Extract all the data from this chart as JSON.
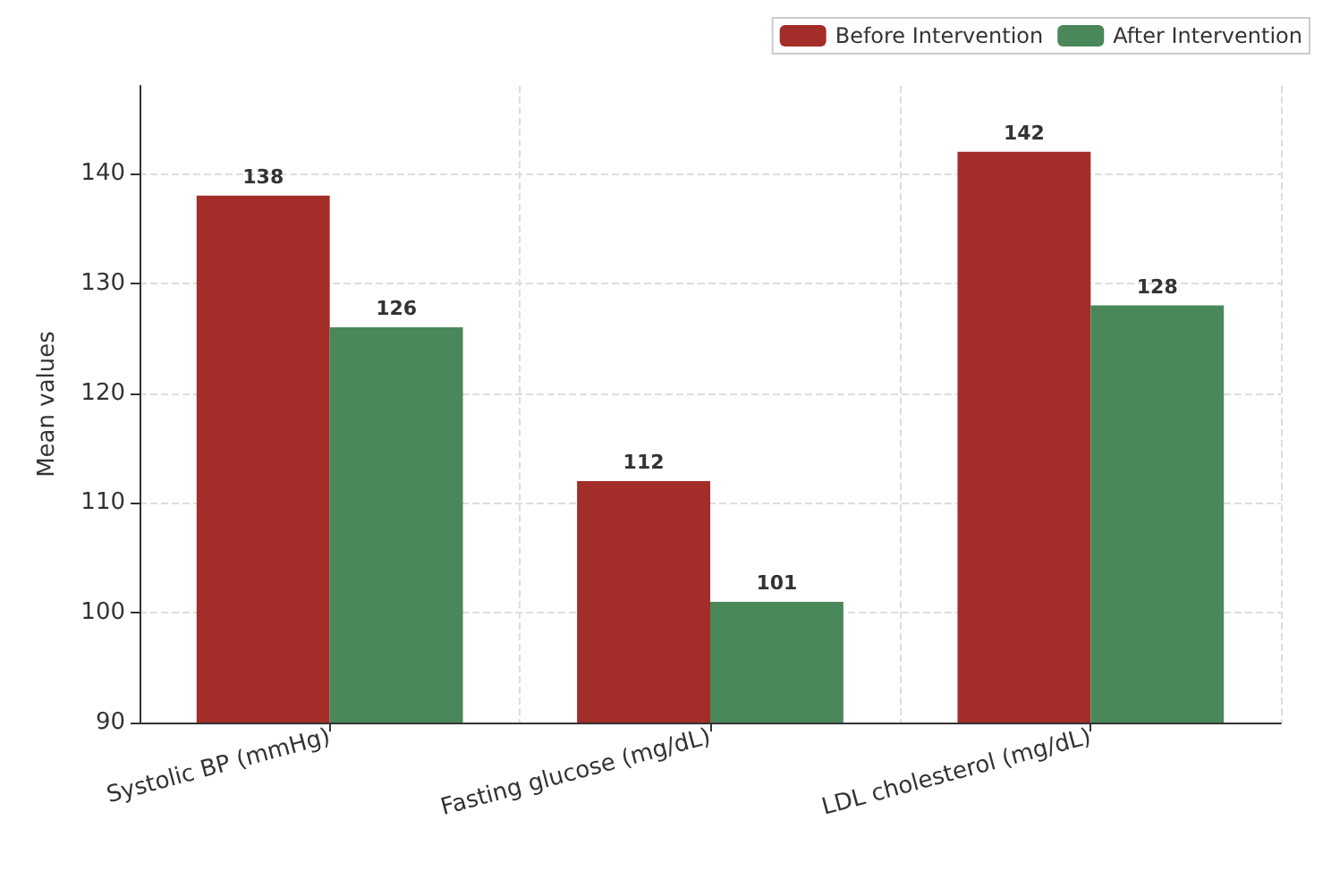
{
  "chart_data": {
    "type": "bar",
    "ylabel": "Mean values",
    "categories": [
      "Systolic BP (mmHg)",
      "Fasting glucose (mg/dL)",
      "LDL cholesterol (mg/dL)"
    ],
    "series": [
      {
        "name": "Before Intervention",
        "color": "#a32d28",
        "values": [
          138,
          112,
          142
        ]
      },
      {
        "name": "After Intervention",
        "color": "#4a875a",
        "values": [
          126,
          101,
          128
        ]
      }
    ],
    "ylim": [
      90,
      148
    ],
    "yticks": [
      90,
      100,
      110,
      120,
      130,
      140
    ],
    "grid": true,
    "legend": "top right",
    "data_labels": true
  }
}
